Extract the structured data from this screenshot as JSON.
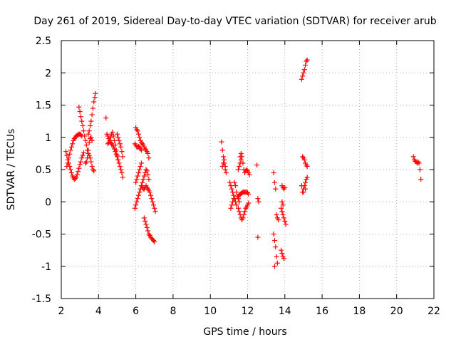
{
  "chart_data": {
    "type": "scatter",
    "title": "Day 261 of 2019, Sidereal Day-to-day VTEC variation (SDTVAR) for receiver arub",
    "xlabel": "GPS time / hours",
    "ylabel": "SDTVAR / TECUs",
    "xlim": [
      2,
      22
    ],
    "ylim": [
      -1.5,
      2.5
    ],
    "xticks": [
      2,
      4,
      6,
      8,
      10,
      12,
      14,
      16,
      18,
      20,
      22
    ],
    "yticks": [
      -1.5,
      -1,
      -0.5,
      0,
      0.5,
      1,
      1.5,
      2,
      2.5
    ],
    "grid": true,
    "marker": "+",
    "color": "#ff0000",
    "series": [
      {
        "name": "SDTVAR",
        "points": [
          [
            2.25,
            0.78
          ],
          [
            2.3,
            0.72
          ],
          [
            2.35,
            0.65
          ],
          [
            2.4,
            0.6
          ],
          [
            2.45,
            0.55
          ],
          [
            2.5,
            0.5
          ],
          [
            2.55,
            0.45
          ],
          [
            2.6,
            0.4
          ],
          [
            2.65,
            0.37
          ],
          [
            2.7,
            0.35
          ],
          [
            2.75,
            0.36
          ],
          [
            2.8,
            0.38
          ],
          [
            2.85,
            0.42
          ],
          [
            2.9,
            0.47
          ],
          [
            2.95,
            0.52
          ],
          [
            3.0,
            0.58
          ],
          [
            3.05,
            0.62
          ],
          [
            3.1,
            0.68
          ],
          [
            3.15,
            0.72
          ],
          [
            3.2,
            0.76
          ],
          [
            2.3,
            0.55
          ],
          [
            2.35,
            0.6
          ],
          [
            2.4,
            0.68
          ],
          [
            2.45,
            0.74
          ],
          [
            2.5,
            0.8
          ],
          [
            2.55,
            0.85
          ],
          [
            2.6,
            0.9
          ],
          [
            2.65,
            0.95
          ],
          [
            2.7,
            0.98
          ],
          [
            2.75,
            1.0
          ],
          [
            2.8,
            1.02
          ],
          [
            2.85,
            1.03
          ],
          [
            2.9,
            1.04
          ],
          [
            2.95,
            1.05
          ],
          [
            3.0,
            1.05
          ],
          [
            3.05,
            1.04
          ],
          [
            3.1,
            1.02
          ],
          [
            2.95,
            1.47
          ],
          [
            3.0,
            1.4
          ],
          [
            3.05,
            1.32
          ],
          [
            3.1,
            1.25
          ],
          [
            3.15,
            1.18
          ],
          [
            3.2,
            1.1
          ],
          [
            3.25,
            1.02
          ],
          [
            3.3,
            0.95
          ],
          [
            3.35,
            0.88
          ],
          [
            3.4,
            0.8
          ],
          [
            3.45,
            0.75
          ],
          [
            3.5,
            0.72
          ],
          [
            3.55,
            0.68
          ],
          [
            3.6,
            0.62
          ],
          [
            3.65,
            0.55
          ],
          [
            3.7,
            0.5
          ],
          [
            3.75,
            0.48
          ],
          [
            3.45,
            1.05
          ],
          [
            3.5,
            1.1
          ],
          [
            3.55,
            1.18
          ],
          [
            3.6,
            1.25
          ],
          [
            3.65,
            1.35
          ],
          [
            3.7,
            1.45
          ],
          [
            3.75,
            1.55
          ],
          [
            3.8,
            1.62
          ],
          [
            3.83,
            1.68
          ],
          [
            3.3,
            0.6
          ],
          [
            3.35,
            0.62
          ],
          [
            3.4,
            0.68
          ],
          [
            3.45,
            0.8
          ],
          [
            3.5,
            0.92
          ],
          [
            3.55,
            0.98
          ],
          [
            3.6,
            1.0
          ],
          [
            3.65,
            0.95
          ],
          [
            4.4,
            1.3
          ],
          [
            4.45,
            1.05
          ],
          [
            4.5,
            1.02
          ],
          [
            4.55,
            0.98
          ],
          [
            4.6,
            0.95
          ],
          [
            4.65,
            0.92
          ],
          [
            4.7,
            0.9
          ],
          [
            4.75,
            0.88
          ],
          [
            4.8,
            0.85
          ],
          [
            4.85,
            0.82
          ],
          [
            4.9,
            0.78
          ],
          [
            4.95,
            0.74
          ],
          [
            5.0,
            0.7
          ],
          [
            5.05,
            0.65
          ],
          [
            5.1,
            0.6
          ],
          [
            5.15,
            0.55
          ],
          [
            5.2,
            0.5
          ],
          [
            5.25,
            0.45
          ],
          [
            5.3,
            0.38
          ],
          [
            4.5,
            0.9
          ],
          [
            4.55,
            0.92
          ],
          [
            4.6,
            0.95
          ],
          [
            4.65,
            1.0
          ],
          [
            4.7,
            1.05
          ],
          [
            4.75,
            1.08
          ],
          [
            4.8,
            1.02
          ],
          [
            4.85,
            0.95
          ],
          [
            4.9,
            0.88
          ],
          [
            4.95,
            0.8
          ],
          [
            5.0,
            0.72
          ],
          [
            5.05,
            0.65
          ],
          [
            5.0,
            1.05
          ],
          [
            5.05,
            1.0
          ],
          [
            5.1,
            0.95
          ],
          [
            5.15,
            0.9
          ],
          [
            5.2,
            0.85
          ],
          [
            5.25,
            0.78
          ],
          [
            5.3,
            0.7
          ],
          [
            5.95,
            -0.1
          ],
          [
            6.0,
            -0.05
          ],
          [
            6.05,
            0.0
          ],
          [
            6.1,
            0.05
          ],
          [
            6.15,
            0.1
          ],
          [
            6.2,
            0.15
          ],
          [
            6.25,
            0.2
          ],
          [
            6.3,
            0.25
          ],
          [
            6.35,
            0.3
          ],
          [
            6.4,
            0.35
          ],
          [
            6.45,
            0.4
          ],
          [
            6.5,
            0.45
          ],
          [
            6.55,
            0.5
          ],
          [
            6.6,
            0.48
          ],
          [
            6.65,
            0.42
          ],
          [
            6.7,
            0.35
          ],
          [
            6.0,
            1.15
          ],
          [
            6.05,
            1.12
          ],
          [
            6.1,
            1.1
          ],
          [
            6.15,
            1.05
          ],
          [
            6.2,
            1.0
          ],
          [
            6.25,
            0.95
          ],
          [
            6.3,
            0.92
          ],
          [
            6.35,
            0.9
          ],
          [
            6.4,
            0.88
          ],
          [
            6.45,
            0.85
          ],
          [
            6.5,
            0.82
          ],
          [
            6.55,
            0.8
          ],
          [
            6.6,
            0.78
          ],
          [
            6.65,
            0.75
          ],
          [
            6.7,
            0.68
          ],
          [
            5.95,
            0.9
          ],
          [
            6.0,
            0.88
          ],
          [
            6.05,
            0.85
          ],
          [
            6.1,
            0.85
          ],
          [
            6.15,
            0.86
          ],
          [
            6.2,
            0.85
          ],
          [
            6.25,
            0.82
          ],
          [
            6.3,
            0.8
          ],
          [
            6.0,
            0.3
          ],
          [
            6.05,
            0.35
          ],
          [
            6.1,
            0.4
          ],
          [
            6.15,
            0.45
          ],
          [
            6.2,
            0.5
          ],
          [
            6.25,
            0.55
          ],
          [
            6.3,
            0.6
          ],
          [
            6.3,
            0.25
          ],
          [
            6.35,
            0.22
          ],
          [
            6.4,
            0.2
          ],
          [
            6.45,
            0.2
          ],
          [
            6.5,
            0.22
          ],
          [
            6.55,
            0.25
          ],
          [
            6.6,
            0.22
          ],
          [
            6.65,
            0.2
          ],
          [
            6.7,
            0.18
          ],
          [
            6.75,
            0.15
          ],
          [
            6.8,
            0.1
          ],
          [
            6.85,
            0.05
          ],
          [
            6.9,
            0.0
          ],
          [
            6.95,
            -0.05
          ],
          [
            7.0,
            -0.1
          ],
          [
            7.05,
            -0.15
          ],
          [
            6.45,
            -0.25
          ],
          [
            6.5,
            -0.3
          ],
          [
            6.55,
            -0.35
          ],
          [
            6.6,
            -0.4
          ],
          [
            6.65,
            -0.45
          ],
          [
            6.7,
            -0.5
          ],
          [
            6.75,
            -0.52
          ],
          [
            6.8,
            -0.55
          ],
          [
            6.85,
            -0.57
          ],
          [
            6.9,
            -0.58
          ],
          [
            6.95,
            -0.6
          ],
          [
            7.0,
            -0.62
          ],
          [
            10.6,
            0.93
          ],
          [
            10.65,
            0.8
          ],
          [
            10.7,
            0.7
          ],
          [
            10.75,
            0.6
          ],
          [
            10.8,
            0.5
          ],
          [
            10.65,
            0.55
          ],
          [
            10.7,
            0.6
          ],
          [
            10.75,
            0.65
          ],
          [
            10.8,
            0.55
          ],
          [
            10.85,
            0.45
          ],
          [
            11.05,
            0.3
          ],
          [
            11.1,
            0.25
          ],
          [
            11.15,
            0.2
          ],
          [
            11.2,
            0.15
          ],
          [
            11.25,
            0.1
          ],
          [
            11.3,
            0.05
          ],
          [
            11.35,
            0.0
          ],
          [
            11.4,
            -0.05
          ],
          [
            11.1,
            -0.1
          ],
          [
            11.15,
            -0.05
          ],
          [
            11.2,
            0.0
          ],
          [
            11.25,
            0.05
          ],
          [
            11.3,
            0.3
          ],
          [
            11.35,
            0.25
          ],
          [
            11.4,
            0.15
          ],
          [
            11.45,
            0.08
          ],
          [
            11.5,
            0.05
          ],
          [
            11.55,
            0.0
          ],
          [
            11.6,
            0.7
          ],
          [
            11.65,
            0.75
          ],
          [
            11.7,
            0.7
          ],
          [
            11.75,
            0.6
          ],
          [
            11.8,
            0.5
          ],
          [
            11.85,
            0.45
          ],
          [
            11.9,
            0.48
          ],
          [
            11.95,
            0.5
          ],
          [
            12.0,
            0.48
          ],
          [
            12.05,
            0.45
          ],
          [
            12.1,
            0.42
          ],
          [
            11.5,
            0.5
          ],
          [
            11.55,
            0.55
          ],
          [
            11.6,
            0.6
          ],
          [
            11.65,
            0.65
          ],
          [
            11.5,
            0.08
          ],
          [
            11.55,
            0.1
          ],
          [
            11.6,
            0.12
          ],
          [
            11.65,
            0.13
          ],
          [
            11.7,
            0.14
          ],
          [
            11.75,
            0.15
          ],
          [
            11.8,
            0.15
          ],
          [
            11.85,
            0.15
          ],
          [
            11.9,
            0.15
          ],
          [
            11.95,
            0.15
          ],
          [
            12.0,
            0.14
          ],
          [
            12.05,
            0.12
          ],
          [
            11.5,
            -0.1
          ],
          [
            11.55,
            -0.15
          ],
          [
            11.6,
            -0.2
          ],
          [
            11.65,
            -0.25
          ],
          [
            11.7,
            -0.28
          ],
          [
            11.75,
            -0.25
          ],
          [
            11.8,
            -0.2
          ],
          [
            11.85,
            -0.15
          ],
          [
            11.9,
            -0.1
          ],
          [
            11.95,
            -0.08
          ],
          [
            12.0,
            -0.05
          ],
          [
            12.05,
            -0.02
          ],
          [
            12.5,
            0.57
          ],
          [
            12.55,
            0.05
          ],
          [
            12.6,
            0.0
          ],
          [
            12.55,
            -0.55
          ],
          [
            13.4,
            0.45
          ],
          [
            13.45,
            0.3
          ],
          [
            13.5,
            0.2
          ],
          [
            13.55,
            -0.2
          ],
          [
            13.6,
            -0.25
          ],
          [
            13.65,
            -0.28
          ],
          [
            13.4,
            -0.5
          ],
          [
            13.45,
            -0.6
          ],
          [
            13.5,
            -0.7
          ],
          [
            13.55,
            -0.85
          ],
          [
            13.6,
            -0.95
          ],
          [
            13.45,
            -1.0
          ],
          [
            13.85,
            0.25
          ],
          [
            13.9,
            0.22
          ],
          [
            13.95,
            0.2
          ],
          [
            14.0,
            0.22
          ],
          [
            13.8,
            -0.1
          ],
          [
            13.85,
            -0.15
          ],
          [
            13.9,
            -0.2
          ],
          [
            13.95,
            -0.25
          ],
          [
            14.0,
            -0.3
          ],
          [
            14.05,
            -0.35
          ],
          [
            13.85,
            0.0
          ],
          [
            13.9,
            -0.05
          ],
          [
            13.8,
            -0.75
          ],
          [
            13.85,
            -0.8
          ],
          [
            13.9,
            -0.85
          ],
          [
            13.95,
            -0.88
          ],
          [
            14.9,
            1.9
          ],
          [
            14.95,
            1.95
          ],
          [
            15.0,
            2.0
          ],
          [
            15.05,
            2.05
          ],
          [
            15.1,
            2.12
          ],
          [
            15.15,
            2.18
          ],
          [
            15.2,
            2.2
          ],
          [
            14.95,
            0.7
          ],
          [
            15.0,
            0.68
          ],
          [
            15.05,
            0.65
          ],
          [
            15.1,
            0.6
          ],
          [
            15.15,
            0.57
          ],
          [
            15.2,
            0.55
          ],
          [
            14.95,
            0.15
          ],
          [
            15.0,
            0.2
          ],
          [
            15.05,
            0.25
          ],
          [
            15.1,
            0.3
          ],
          [
            15.15,
            0.35
          ],
          [
            15.2,
            0.38
          ],
          [
            14.9,
            0.25
          ],
          [
            15.0,
            0.15
          ],
          [
            15.1,
            0.2
          ],
          [
            20.9,
            0.7
          ],
          [
            20.95,
            0.65
          ],
          [
            21.0,
            0.63
          ],
          [
            21.05,
            0.62
          ],
          [
            21.1,
            0.6
          ],
          [
            21.15,
            0.62
          ],
          [
            21.2,
            0.6
          ],
          [
            21.25,
            0.5
          ],
          [
            21.3,
            0.35
          ]
        ]
      }
    ]
  }
}
